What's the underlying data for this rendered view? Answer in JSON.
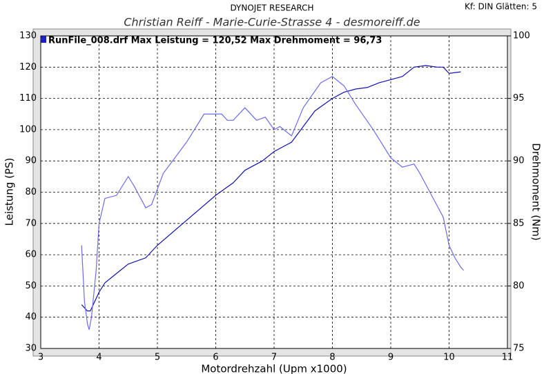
{
  "chart_data": {
    "type": "line",
    "header": "DYNOJET RESEARCH",
    "settings_text": "Kf: DIN  Glätten: 5",
    "title": "Christian Reiff - Marie-Curie-Strasse 4 - desmoreiff.de",
    "legend_text": "RunFile_008.drf Max Leistung = 120,52     Max Drehmoment = 96,73",
    "x_label": "Motordrehzahl (Upm x1000)",
    "y_label": "Leistung (PS)",
    "y2_label": "Drehmoment (Nm)",
    "xlim": [
      3,
      11
    ],
    "xticks": [
      3,
      4,
      5,
      6,
      7,
      8,
      9,
      10,
      11
    ],
    "ylim": [
      30,
      130
    ],
    "yticks": [
      30,
      40,
      50,
      60,
      70,
      80,
      90,
      100,
      110,
      120,
      130
    ],
    "y2lim": [
      75,
      100
    ],
    "y2ticks": [
      75,
      80,
      85,
      90,
      95,
      100
    ],
    "grid": true,
    "series": [
      {
        "color": "#1010b0",
        "x": [
          3.7,
          3.8,
          3.85,
          4.0,
          4.1,
          4.3,
          4.5,
          4.8,
          5.0,
          5.5,
          6.0,
          6.3,
          6.5,
          6.8,
          7.0,
          7.3,
          7.5,
          7.7,
          8.0,
          8.2,
          8.4,
          8.6,
          8.8,
          9.0,
          9.2,
          9.4,
          9.6,
          9.8,
          9.9,
          10.0,
          10.2
        ],
        "values": [
          44,
          42,
          42,
          48,
          51,
          54,
          57,
          59,
          63,
          71,
          79,
          83,
          87,
          90,
          93,
          96,
          101,
          106,
          110,
          112,
          113,
          113.5,
          115,
          116,
          117,
          120,
          120.5,
          120,
          120,
          118,
          118.5
        ]
      },
      {
        "color": "#6a6af0",
        "axis": "y2",
        "x": [
          3.7,
          3.75,
          3.8,
          3.83,
          3.87,
          3.95,
          4.0,
          4.1,
          4.3,
          4.5,
          4.6,
          4.8,
          4.9,
          5.1,
          5.5,
          5.8,
          6.1,
          6.2,
          6.3,
          6.5,
          6.7,
          6.85,
          7.0,
          7.1,
          7.3,
          7.5,
          7.8,
          8.0,
          8.2,
          8.4,
          8.7,
          9.0,
          9.2,
          9.4,
          9.5,
          9.7,
          9.9,
          10.0,
          10.1,
          10.2,
          10.25
        ],
        "values": [
          83.25,
          78.75,
          77,
          76.5,
          77.5,
          81.25,
          85,
          87,
          87.25,
          88.75,
          88,
          86.25,
          86.5,
          89,
          91.5,
          93.75,
          93.75,
          93.25,
          93.25,
          94.25,
          93.25,
          93.5,
          92.5,
          92.75,
          92,
          94.25,
          96.25,
          96.75,
          96,
          94.5,
          92.5,
          90.25,
          89.5,
          89.75,
          89,
          87.25,
          85.5,
          83.25,
          82.25,
          81.5,
          81.25
        ]
      }
    ]
  }
}
